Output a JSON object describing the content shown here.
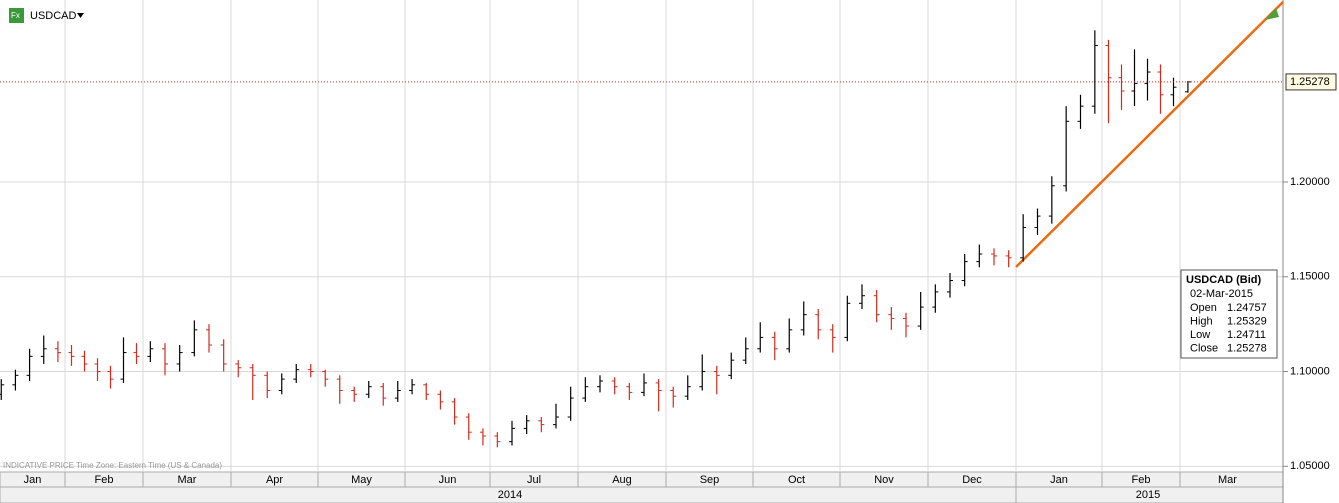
{
  "chart_data": {
    "type": "ohlc",
    "symbol": "USDCAD",
    "footer": "INDICATIVE PRICE   Time Zone: Eastern Time (US & Canada)",
    "ylim": [
      1.047,
      1.296
    ],
    "yticks": [
      {
        "value": 1.05,
        "label": "1.05000"
      },
      {
        "value": 1.1,
        "label": "1.10000"
      },
      {
        "value": 1.15,
        "label": "1.15000"
      },
      {
        "value": 1.2,
        "label": "1.20000"
      }
    ],
    "up_color": "#000000",
    "down_color": "#d42a1c",
    "grid": true,
    "years": [
      "2014",
      "2015"
    ],
    "info": {
      "title": "USDCAD (Bid)",
      "date": "02-Mar-2015",
      "labels": [
        "Open",
        "High",
        "Low",
        "Close"
      ]
    },
    "months": [
      {
        "label": "Jan",
        "bars": [
          [
            1.084,
            1.091,
            1.082,
            1.088
          ],
          [
            1.088,
            1.096,
            1.085,
            1.093
          ],
          [
            1.093,
            1.101,
            1.09,
            1.098
          ],
          [
            1.098,
            1.112,
            1.095,
            1.108
          ],
          [
            1.108,
            1.119,
            1.104,
            1.112
          ],
          [
            1.112,
            1.116,
            1.105,
            1.11
          ]
        ]
      },
      {
        "label": "Feb",
        "bars": [
          [
            1.11,
            1.114,
            1.103,
            1.108
          ],
          [
            1.108,
            1.111,
            1.1,
            1.104
          ],
          [
            1.104,
            1.107,
            1.095,
            1.1
          ],
          [
            1.1,
            1.103,
            1.091,
            1.096
          ],
          [
            1.096,
            1.118,
            1.094,
            1.11
          ],
          [
            1.11,
            1.115,
            1.104,
            1.108
          ]
        ]
      },
      {
        "label": "Mar",
        "bars": [
          [
            1.108,
            1.116,
            1.105,
            1.112
          ],
          [
            1.112,
            1.115,
            1.098,
            1.104
          ],
          [
            1.104,
            1.114,
            1.1,
            1.11
          ],
          [
            1.11,
            1.127,
            1.108,
            1.122
          ],
          [
            1.122,
            1.125,
            1.11,
            1.114
          ],
          [
            1.114,
            1.117,
            1.1,
            1.104
          ]
        ]
      },
      {
        "label": "Apr",
        "bars": [
          [
            1.104,
            1.106,
            1.097,
            1.102
          ],
          [
            1.102,
            1.104,
            1.085,
            1.098
          ],
          [
            1.098,
            1.1,
            1.086,
            1.09
          ],
          [
            1.09,
            1.099,
            1.088,
            1.096
          ],
          [
            1.096,
            1.104,
            1.094,
            1.101
          ],
          [
            1.101,
            1.104,
            1.097,
            1.1
          ]
        ]
      },
      {
        "label": "May",
        "bars": [
          [
            1.1,
            1.101,
            1.092,
            1.096
          ],
          [
            1.096,
            1.098,
            1.083,
            1.09
          ],
          [
            1.09,
            1.092,
            1.084,
            1.088
          ],
          [
            1.088,
            1.095,
            1.086,
            1.092
          ],
          [
            1.092,
            1.094,
            1.082,
            1.086
          ],
          [
            1.086,
            1.095,
            1.084,
            1.09
          ]
        ]
      },
      {
        "label": "Jun",
        "bars": [
          [
            1.09,
            1.096,
            1.088,
            1.093
          ],
          [
            1.093,
            1.094,
            1.085,
            1.088
          ],
          [
            1.088,
            1.09,
            1.08,
            1.084
          ],
          [
            1.084,
            1.086,
            1.072,
            1.076
          ],
          [
            1.076,
            1.078,
            1.064,
            1.068
          ],
          [
            1.068,
            1.07,
            1.061,
            1.066
          ]
        ]
      },
      {
        "label": "Jul",
        "bars": [
          [
            1.066,
            1.068,
            1.06,
            1.063
          ],
          [
            1.063,
            1.074,
            1.061,
            1.07
          ],
          [
            1.07,
            1.077,
            1.067,
            1.074
          ],
          [
            1.074,
            1.076,
            1.068,
            1.072
          ],
          [
            1.072,
            1.083,
            1.07,
            1.076
          ],
          [
            1.076,
            1.092,
            1.074,
            1.086
          ]
        ]
      },
      {
        "label": "Aug",
        "bars": [
          [
            1.086,
            1.097,
            1.084,
            1.092
          ],
          [
            1.092,
            1.098,
            1.089,
            1.095
          ],
          [
            1.095,
            1.097,
            1.088,
            1.092
          ],
          [
            1.092,
            1.094,
            1.085,
            1.089
          ],
          [
            1.089,
            1.099,
            1.087,
            1.094
          ],
          [
            1.094,
            1.096,
            1.079,
            1.09
          ]
        ]
      },
      {
        "label": "Sep",
        "bars": [
          [
            1.09,
            1.092,
            1.081,
            1.087
          ],
          [
            1.087,
            1.098,
            1.085,
            1.092
          ],
          [
            1.092,
            1.109,
            1.09,
            1.1
          ],
          [
            1.1,
            1.103,
            1.088,
            1.098
          ],
          [
            1.098,
            1.11,
            1.096,
            1.106
          ],
          [
            1.106,
            1.118,
            1.104,
            1.112
          ]
        ]
      },
      {
        "label": "Oct",
        "bars": [
          [
            1.112,
            1.126,
            1.11,
            1.118
          ],
          [
            1.118,
            1.121,
            1.106,
            1.112
          ],
          [
            1.112,
            1.128,
            1.11,
            1.122
          ],
          [
            1.122,
            1.137,
            1.119,
            1.13
          ],
          [
            1.13,
            1.133,
            1.117,
            1.122
          ],
          [
            1.122,
            1.125,
            1.11,
            1.118
          ]
        ]
      },
      {
        "label": "Nov",
        "bars": [
          [
            1.118,
            1.14,
            1.116,
            1.136
          ],
          [
            1.136,
            1.146,
            1.133,
            1.14
          ],
          [
            1.14,
            1.143,
            1.126,
            1.13
          ],
          [
            1.13,
            1.134,
            1.122,
            1.128
          ],
          [
            1.128,
            1.131,
            1.118,
            1.124
          ],
          [
            1.124,
            1.142,
            1.122,
            1.134
          ]
        ]
      },
      {
        "label": "Dec",
        "bars": [
          [
            1.134,
            1.146,
            1.131,
            1.142
          ],
          [
            1.142,
            1.152,
            1.139,
            1.148
          ],
          [
            1.148,
            1.162,
            1.145,
            1.158
          ],
          [
            1.158,
            1.167,
            1.155,
            1.162
          ],
          [
            1.162,
            1.165,
            1.156,
            1.161
          ],
          [
            1.161,
            1.164,
            1.155,
            1.16
          ]
        ]
      },
      {
        "label": "Jan",
        "bars": [
          [
            1.16,
            1.183,
            1.158,
            1.176
          ],
          [
            1.176,
            1.186,
            1.172,
            1.182
          ],
          [
            1.182,
            1.203,
            1.178,
            1.198
          ],
          [
            1.198,
            1.24,
            1.195,
            1.232
          ],
          [
            1.232,
            1.246,
            1.228,
            1.24
          ],
          [
            1.24,
            1.28,
            1.236,
            1.272
          ]
        ]
      },
      {
        "label": "Feb",
        "bars": [
          [
            1.272,
            1.275,
            1.231,
            1.255
          ],
          [
            1.255,
            1.262,
            1.238,
            1.248
          ],
          [
            1.248,
            1.27,
            1.24,
            1.252
          ],
          [
            1.252,
            1.265,
            1.243,
            1.258
          ],
          [
            1.258,
            1.262,
            1.236,
            1.246
          ],
          [
            1.246,
            1.255,
            1.24,
            1.25
          ]
        ]
      },
      {
        "label": "Mar",
        "bars": [
          [
            1.24757,
            1.25329,
            1.24711,
            1.25278
          ]
        ]
      }
    ]
  }
}
